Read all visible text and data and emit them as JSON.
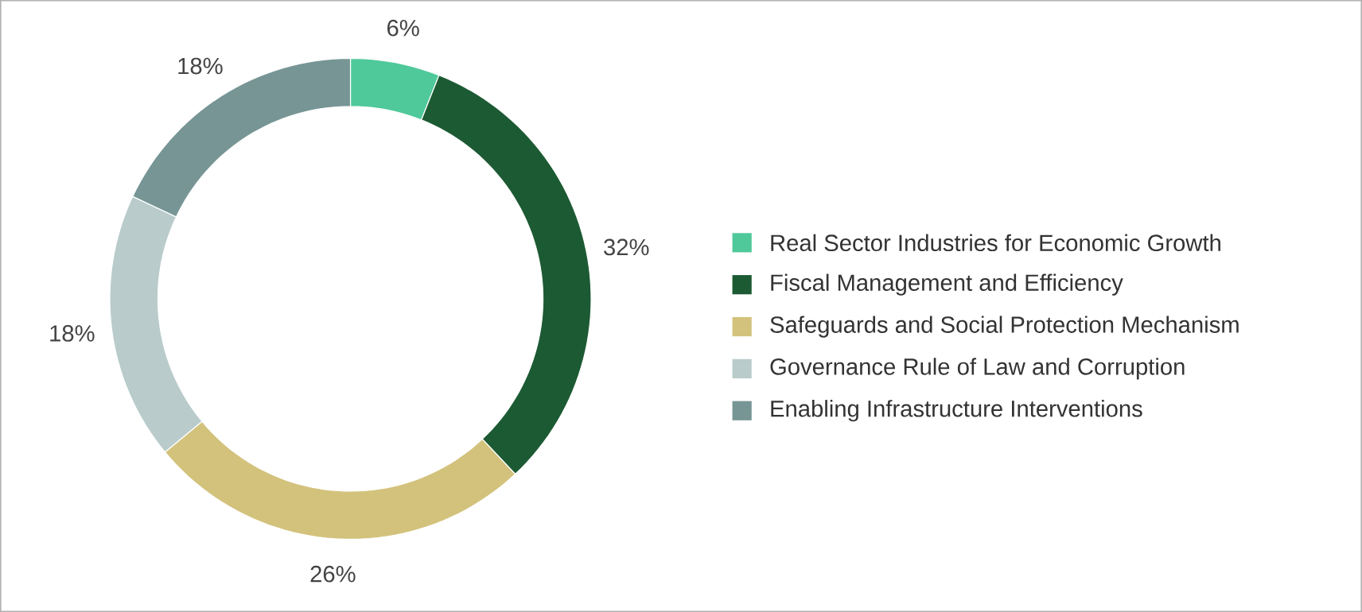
{
  "chart_data": {
    "type": "donut",
    "categories": [
      "Real Sector Industries for Economic Growth",
      "Fiscal Management and Efficiency",
      "Safeguards and Social Protection Mechanism",
      "Governance Rule of Law and Corruption",
      "Enabling Infrastructure Interventions"
    ],
    "values": [
      6,
      32,
      26,
      18,
      18
    ],
    "colors": [
      "#4fc99a",
      "#1c5a33",
      "#d3c27c",
      "#b9cbcb",
      "#779595"
    ],
    "value_labels": [
      "6%",
      "32%",
      "26%",
      "18%",
      "18%"
    ],
    "legend": "right"
  }
}
